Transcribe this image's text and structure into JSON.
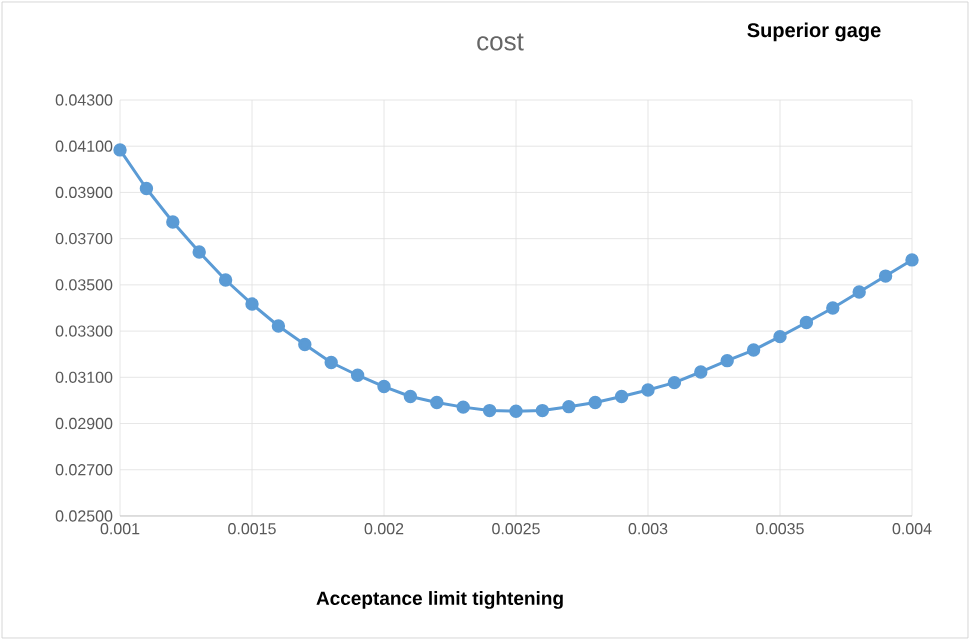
{
  "chart_data": {
    "type": "line",
    "title": "cost",
    "xlabel": "Acceptance limit tightening",
    "annotations": [
      "Superior gage"
    ],
    "x": [
      0.001,
      0.0011,
      0.0012,
      0.0013,
      0.0014,
      0.0015,
      0.0016,
      0.0017,
      0.0018,
      0.0019,
      0.002,
      0.0021,
      0.0022,
      0.0023,
      0.0024,
      0.0025,
      0.0026,
      0.0027,
      0.0028,
      0.0029,
      0.003,
      0.0031,
      0.0032,
      0.0033,
      0.0034,
      0.0035,
      0.0036,
      0.0037,
      0.0038,
      0.0039,
      0.004
    ],
    "series": [
      {
        "color": "#5b9bd5",
        "values": [
          0.04084,
          0.03917,
          0.03772,
          0.03642,
          0.03521,
          0.03417,
          0.03322,
          0.03242,
          0.03164,
          0.03109,
          0.0306,
          0.03017,
          0.02991,
          0.02971,
          0.02956,
          0.02953,
          0.02956,
          0.02973,
          0.02991,
          0.03017,
          0.03045,
          0.03077,
          0.03123,
          0.03172,
          0.03218,
          0.03276,
          0.03337,
          0.034,
          0.03469,
          0.03538,
          0.03608
        ]
      }
    ],
    "xlim": [
      0.001,
      0.004
    ],
    "xticks": [
      0.001,
      0.0015,
      0.002,
      0.0025,
      0.003,
      0.0035,
      0.004
    ],
    "ylim": [
      0.025,
      0.043
    ],
    "yticks": [
      {
        "value": 0.025,
        "label": "0.02500"
      },
      {
        "value": 0.027,
        "label": "0.02700"
      },
      {
        "value": 0.029,
        "label": "0.02900"
      },
      {
        "value": 0.031,
        "label": "0.03100"
      },
      {
        "value": 0.033,
        "label": "0.03300"
      },
      {
        "value": 0.035,
        "label": "0.03500"
      },
      {
        "value": 0.037,
        "label": "0.03700"
      },
      {
        "value": 0.039,
        "label": "0.03900"
      },
      {
        "value": 0.041,
        "label": "0.04100"
      },
      {
        "value": 0.043,
        "label": "0.04300"
      }
    ],
    "grid": true,
    "marker": "circle",
    "line_style": "solid"
  }
}
